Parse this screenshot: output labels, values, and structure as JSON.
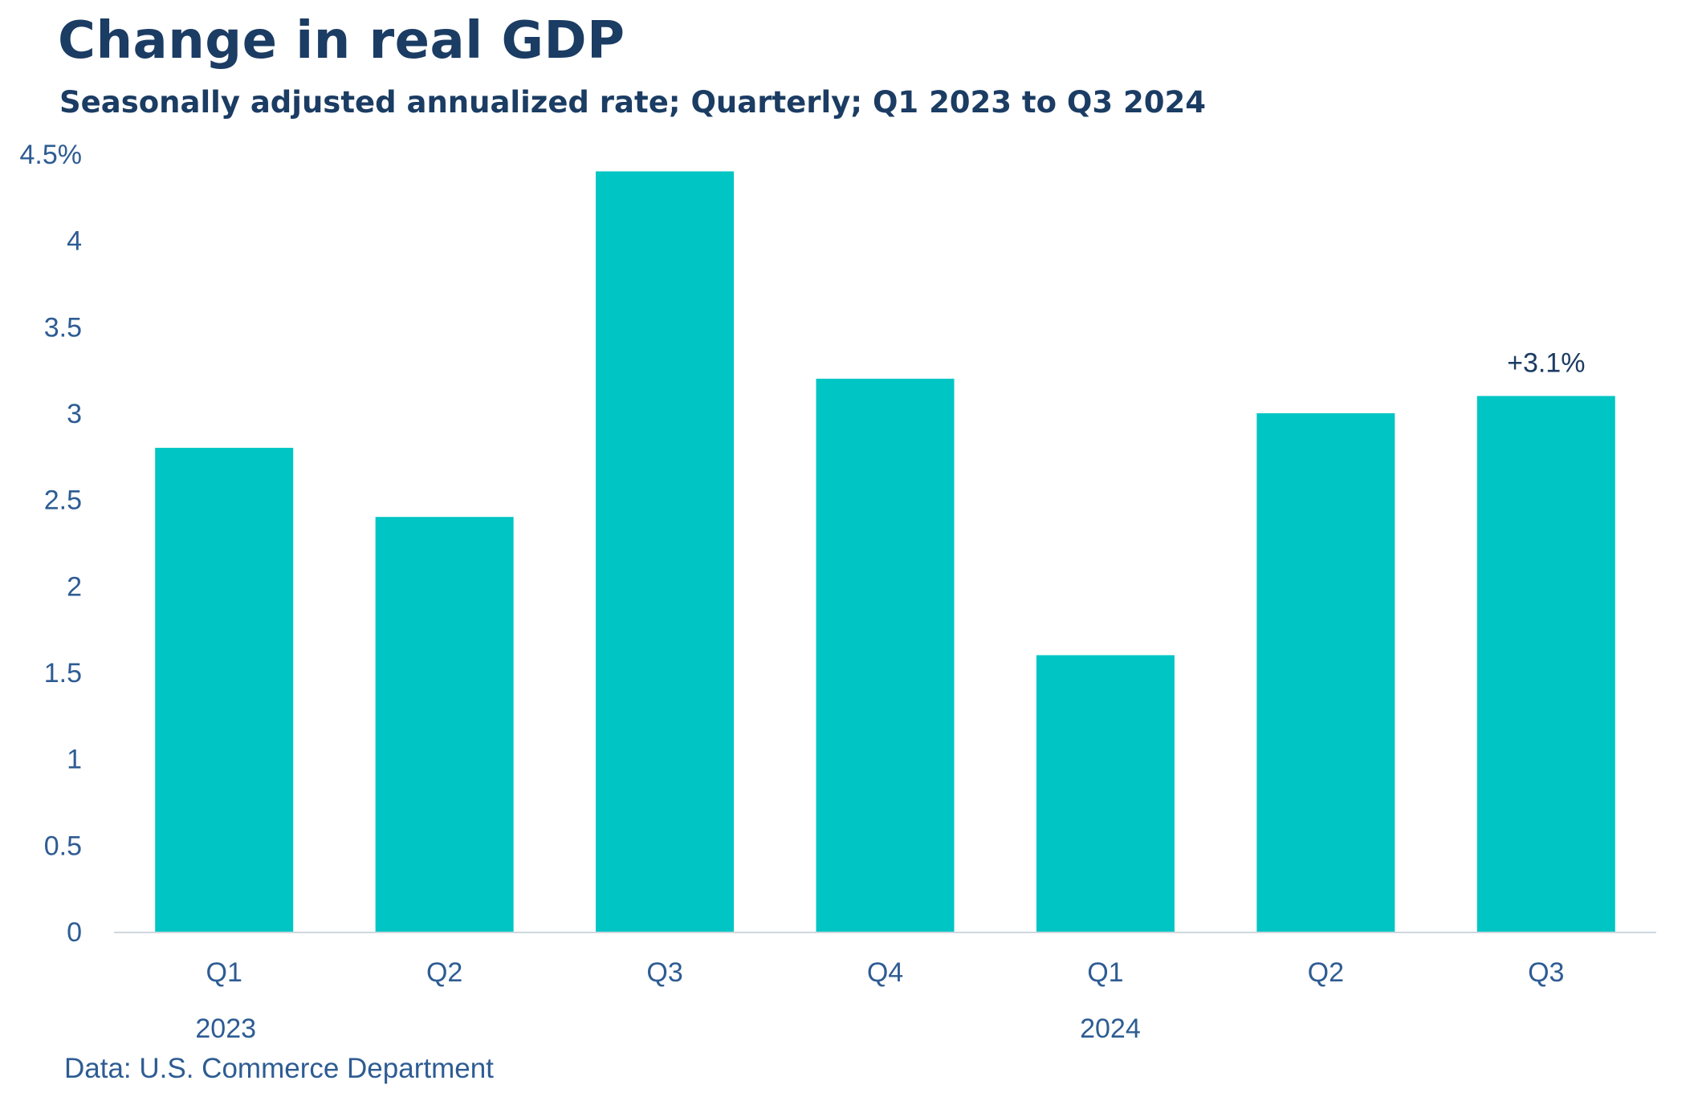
{
  "header": {
    "title": "Change in real GDP",
    "subtitle": "Seasonally adjusted annualized rate; Quarterly; Q1 2023 to Q3 2024"
  },
  "footer": {
    "source": "Data: U.S. Commerce Department"
  },
  "colors": {
    "bar": "#00c5c5",
    "title": "#1b3c63",
    "axis_text": "#2e5c93",
    "axis_line": "#cfd6dd"
  },
  "chart_data": {
    "type": "bar",
    "categories": [
      "Q1",
      "Q2",
      "Q3",
      "Q4",
      "Q1",
      "Q2",
      "Q3"
    ],
    "year_groups": [
      {
        "label": "2023",
        "start": 0,
        "end": 0
      },
      {
        "label": "2024",
        "start": 4,
        "end": 4
      }
    ],
    "values": [
      2.8,
      2.4,
      4.4,
      3.2,
      1.6,
      3.0,
      3.1
    ],
    "annotations": [
      {
        "index": 6,
        "text": "+3.1%"
      }
    ],
    "yticks": [
      {
        "value": 0,
        "label": "0"
      },
      {
        "value": 0.5,
        "label": "0.5"
      },
      {
        "value": 1,
        "label": "1"
      },
      {
        "value": 1.5,
        "label": "1.5"
      },
      {
        "value": 2,
        "label": "2"
      },
      {
        "value": 2.5,
        "label": "2.5"
      },
      {
        "value": 3,
        "label": "3"
      },
      {
        "value": 3.5,
        "label": "3.5"
      },
      {
        "value": 4,
        "label": "4"
      },
      {
        "value": 4.5,
        "label": "4.5%"
      }
    ],
    "ylim": [
      0,
      4.5
    ],
    "grid": false,
    "legend": "none"
  }
}
